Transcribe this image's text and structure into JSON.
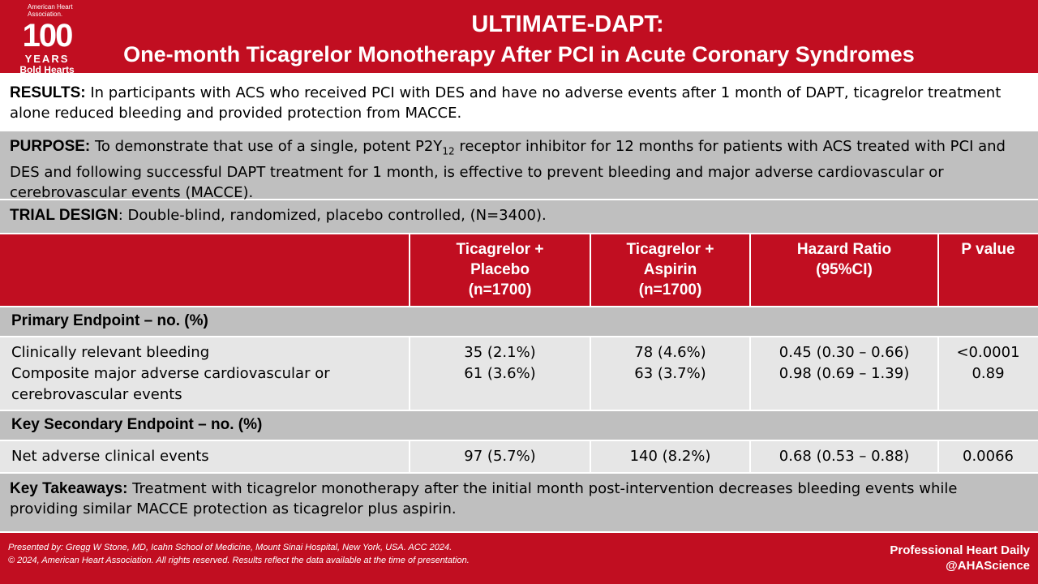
{
  "logo": {
    "org": "American Heart Association.",
    "number": "100",
    "years": "YEARS",
    "tagline": "Bold Hearts"
  },
  "header": {
    "title": "ULTIMATE-DAPT:",
    "subtitle": "One-month Ticagrelor Monotherapy After PCI in Acute Coronary Syndromes"
  },
  "results": {
    "label": "RESULTS:",
    "text": "In participants with ACS who received PCI with DES and have no adverse events after 1 month of DAPT, ticagrelor treatment alone reduced bleeding and provided protection from MACCE."
  },
  "purpose": {
    "label": "PURPOSE:",
    "text_before": "To demonstrate that use of a single, potent P2Y",
    "subscript": "12",
    "text_after": " receptor inhibitor for 12 months for patients with ACS treated with PCI and DES and following successful DAPT treatment for 1 month, is effective to prevent bleeding and major adverse cardiovascular or cerebrovascular events (MACCE)."
  },
  "trial_design": {
    "label": "TRIAL DESIGN",
    "text": ": Double-blind, randomized, placebo controlled, (N=3400)."
  },
  "table": {
    "columns": [
      [
        "Ticagrelor +",
        "Placebo",
        "(n=1700)"
      ],
      [
        "Ticagrelor +",
        "Aspirin",
        "(n=1700)"
      ],
      [
        "Hazard Ratio",
        "(95%CI)"
      ],
      [
        "P value"
      ]
    ],
    "sections": [
      {
        "title": "Primary Endpoint – no. (%)",
        "rows": [
          {
            "label": "Clinically relevant bleeding",
            "cells": [
              "35 (2.1%)",
              "78 (4.6%)",
              "0.45 (0.30 – 0.66)",
              "<0.0001"
            ]
          },
          {
            "label": "Composite major adverse cardiovascular or cerebrovascular events",
            "cells": [
              "61 (3.6%)",
              "63 (3.7%)",
              "0.98 (0.69 – 1.39)",
              "0.89"
            ]
          }
        ]
      },
      {
        "title": "Key Secondary Endpoint – no. (%)",
        "rows": [
          {
            "label": "Net adverse clinical events",
            "cells": [
              "97 (5.7%)",
              "140 (8.2%)",
              "0.68 (0.53 – 0.88)",
              "0.0066"
            ]
          }
        ]
      }
    ]
  },
  "takeaways": {
    "label": "Key Takeaways:",
    "text": "Treatment with ticagrelor monotherapy after the initial month post-intervention decreases bleeding events while providing similar MACCE protection as ticagrelor plus aspirin."
  },
  "footer": {
    "presenter": "Presented by: Gregg W Stone, MD, Icahn School of Medicine, Mount Sinai Hospital, New York, USA. ACC 2024.",
    "copyright": "© 2024, American Heart Association. All rights reserved. Results reflect the data available at the time of presentation.",
    "brand": "Professional Heart Daily",
    "handle": "@AHAScience"
  }
}
